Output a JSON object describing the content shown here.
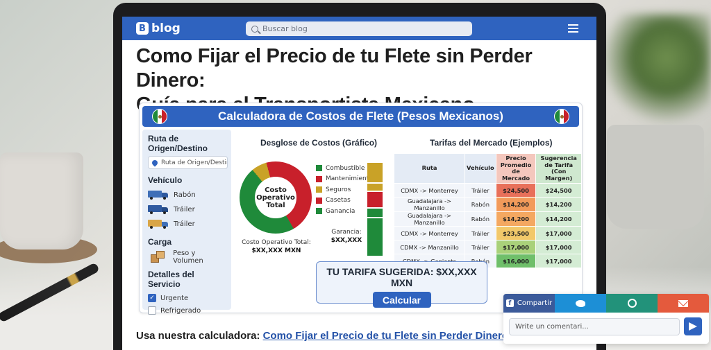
{
  "blog": {
    "logo_letter": "B",
    "logo_text": "blog",
    "search_placeholder": "Buscar blog"
  },
  "article": {
    "title_line1": "Como Fijar el Precio de tu Flete sin Perder Dinero:",
    "title_line2": "Guía para el Transportista Mexicano"
  },
  "calculator": {
    "title": "Calculadora de Costos de Flete (Pesos Mexicanos)",
    "sidebar": {
      "route_heading": "Ruta de Origen/Destino",
      "route_placeholder": "Ruta de Origen/Destino",
      "vehicle_heading": "Vehículo",
      "vehicles": [
        "Rabón",
        "Tráiler",
        "Tráiler"
      ],
      "cargo_heading": "Carga",
      "cargo_label": "Peso y Volumen",
      "service_heading": "Detalles del Servicio",
      "services": [
        {
          "label": "Urgente",
          "checked": true
        },
        {
          "label": "Refrigerado",
          "checked": false
        }
      ]
    },
    "breakdown": {
      "title": "Desglose de Costos (Gráfico)",
      "center_label_1": "Costo",
      "center_label_2": "Operativo",
      "center_label_3": "Total",
      "legend": [
        {
          "label": "Combustible",
          "color": "#1f8a3a"
        },
        {
          "label": "Mantenimiento",
          "color": "#c8202b"
        },
        {
          "label": "Seguros",
          "color": "#c9a227"
        },
        {
          "label": "Casetas",
          "color": "#c8202b"
        },
        {
          "label": "Ganancia",
          "color": "#1f8a3a"
        }
      ],
      "total_label": "Costo Operativo Total:",
      "total_value": "$XX,XXX MXN",
      "profit_label": "Garancia:",
      "profit_value": "$XX,XXX"
    },
    "market": {
      "title": "Tarifas del Mercado (Ejemplos)",
      "headers": [
        "Ruta",
        "Vehículo",
        "Precio Promedio de Mercado",
        "Sugerencia de Tarifa (Con Margen)"
      ],
      "rows": [
        {
          "route": "CDMX -> Monterrey",
          "vehicle": "Tráiler",
          "avg": "$24,500",
          "avg_color": "#e8705a",
          "sug": "$24,500"
        },
        {
          "route": "Guadalajara -> Manzanillo",
          "vehicle": "Rabón",
          "avg": "$14,200",
          "avg_color": "#f29a5a",
          "sug": "$14,200"
        },
        {
          "route": "Guadalajara -> Manzanillo",
          "vehicle": "Rabón",
          "avg": "$14,200",
          "avg_color": "#f4a861",
          "sug": "$14,200"
        },
        {
          "route": "CDMX -> Monterrey",
          "vehicle": "Tráiler",
          "avg": "$23,500",
          "avg_color": "#f2c86a",
          "sug": "$17,000"
        },
        {
          "route": "CDMX -> Manzanillo",
          "vehicle": "Tráiler",
          "avg": "$17,000",
          "avg_color": "#a9d17a",
          "sug": "$17,000"
        },
        {
          "route": "CDMX -> Ganjants",
          "vehicle": "Rabón",
          "avg": "$16,000",
          "avg_color": "#6fbf6a",
          "sug": "$17,000"
        }
      ]
    },
    "suggested_label": "TU TARIFA SUGERIDA: $XX,XXX MXN",
    "calculate_button": "Calcular"
  },
  "footer": {
    "prefix": "Usa nuestra calculadora:",
    "link_text": "Como Fijar el Precio de tu Flete sin Perder Dinero"
  },
  "share": {
    "facebook_label": "Compartir",
    "comment_placeholder": "Write un comentari..."
  },
  "icons": [
    "search-icon",
    "menu-icon",
    "map-pin-icon",
    "truck-icon",
    "box-icon",
    "check-icon",
    "facebook-icon",
    "twitter-icon",
    "whatsapp-icon",
    "mail-icon",
    "send-icon"
  ]
}
